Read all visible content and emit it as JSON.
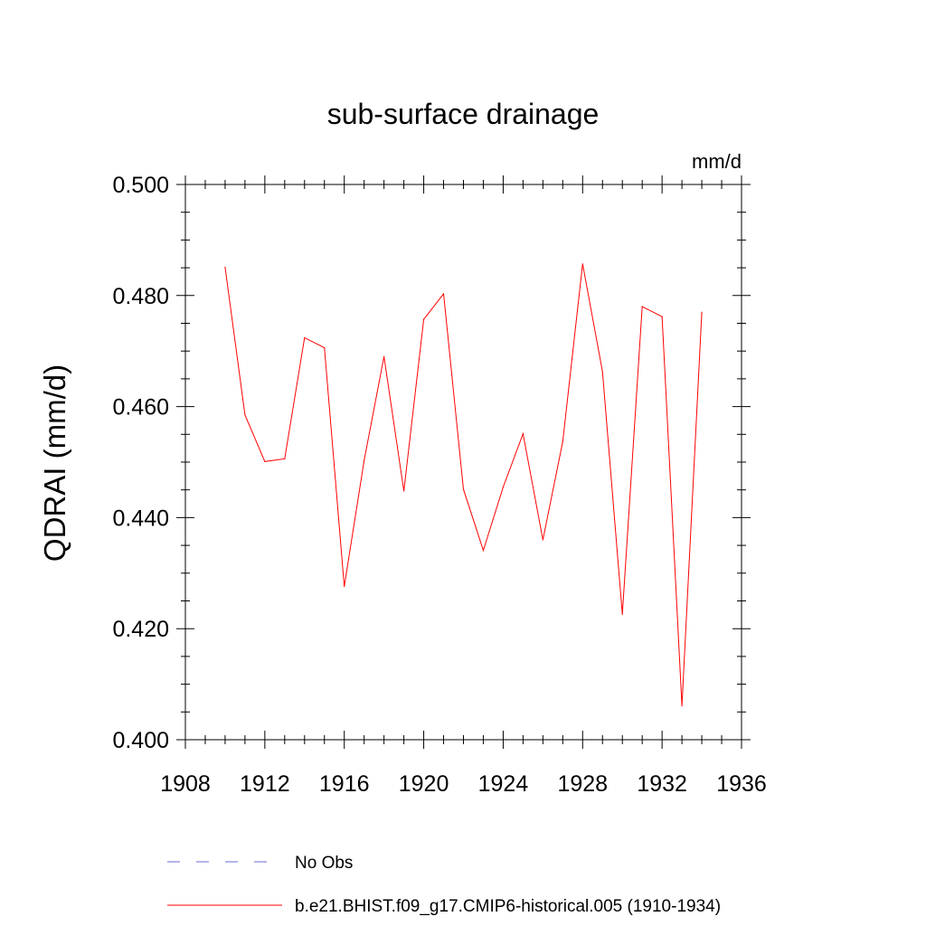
{
  "chart_data": {
    "type": "line",
    "title": "sub-surface drainage",
    "units": "mm/d",
    "ylabel": "QDRAI  (mm/d)",
    "xlabel": "",
    "xlim": [
      1908,
      1936
    ],
    "ylim": [
      0.4,
      0.5
    ],
    "x_ticks": [
      1908,
      1912,
      1916,
      1920,
      1924,
      1928,
      1932,
      1936
    ],
    "x_tick_labels": [
      "1908",
      "1912",
      "1916",
      "1920",
      "1924",
      "1928",
      "1932",
      "1936"
    ],
    "y_ticks": [
      0.4,
      0.42,
      0.44,
      0.46,
      0.48,
      0.5
    ],
    "y_tick_labels": [
      "0.400",
      "0.420",
      "0.440",
      "0.460",
      "0.480",
      "0.500"
    ],
    "grid": false,
    "legend_position": "bottom",
    "legend": [
      {
        "label": "No Obs",
        "color": "#6b6bd6",
        "dash": "dashed"
      },
      {
        "label": "b.e21.BHIST.f09_g17.CMIP6-historical.005 (1910-1934)",
        "color": "#ff0000",
        "dash": "solid"
      }
    ],
    "series": [
      {
        "name": "b.e21.BHIST.f09_g17.CMIP6-historical.005 (1910-1934)",
        "color": "#ff0000",
        "x": [
          1910,
          1911,
          1912,
          1913,
          1914,
          1915,
          1916,
          1917,
          1918,
          1919,
          1920,
          1921,
          1922,
          1923,
          1924,
          1925,
          1926,
          1927,
          1928,
          1929,
          1930,
          1931,
          1932,
          1933,
          1934
        ],
        "values": [
          0.4851,
          0.4585,
          0.4501,
          0.4506,
          0.4724,
          0.4706,
          0.4276,
          0.4503,
          0.469,
          0.4448,
          0.4757,
          0.4803,
          0.4451,
          0.4341,
          0.4455,
          0.4551,
          0.436,
          0.4537,
          0.4857,
          0.4663,
          0.4226,
          0.478,
          0.4762,
          0.4061,
          0.477
        ]
      }
    ]
  }
}
